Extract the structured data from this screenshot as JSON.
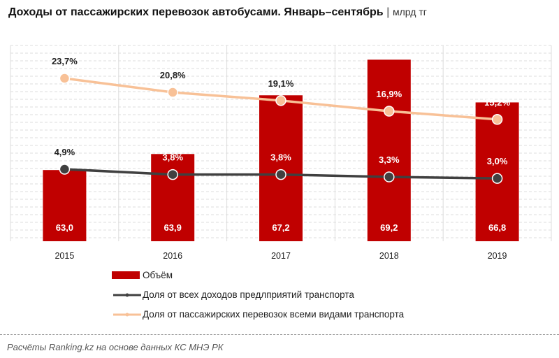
{
  "title": "Доходы от пассажирских перевозок автобусами. Январь–сентябрь",
  "unit": "млрд тг",
  "source": "Расчёты Ranking.kz на основе данных КС МНЭ РК",
  "colors": {
    "bar": "#c00000",
    "dark_line": "#404040",
    "light_line": "#f8c197"
  },
  "chart_data": {
    "type": "bar",
    "categories": [
      "2015",
      "2016",
      "2017",
      "2018",
      "2019"
    ],
    "y_axis": {
      "range": [
        59,
        70
      ],
      "visible": false
    },
    "y2_axis": {
      "range": [
        -10,
        30.5
      ],
      "visible": false
    },
    "grid": true,
    "legend_placement": "bottom",
    "series": [
      {
        "name": "Объём",
        "type": "bar",
        "values": [
          63.0,
          63.9,
          67.2,
          69.2,
          66.8
        ],
        "labels": [
          "63,0",
          "63,9",
          "67,2",
          "69,2",
          "66,8"
        ]
      },
      {
        "name": "Доля от всех доходов предлприятий транспорта",
        "type": "line",
        "axis": "secondary",
        "values": [
          4.9,
          3.8,
          3.8,
          3.3,
          3.0
        ],
        "labels": [
          "4,9%",
          "3,8%",
          "3,8%",
          "3,3%",
          "3,0%"
        ]
      },
      {
        "name": "Доля от пассажирских перевозок всеми видами транспорта",
        "type": "line",
        "axis": "secondary",
        "values": [
          23.7,
          20.8,
          19.1,
          16.9,
          15.2
        ],
        "labels": [
          "23,7%",
          "20,8%",
          "19,1%",
          "16,9%",
          "15,2%"
        ]
      }
    ]
  }
}
